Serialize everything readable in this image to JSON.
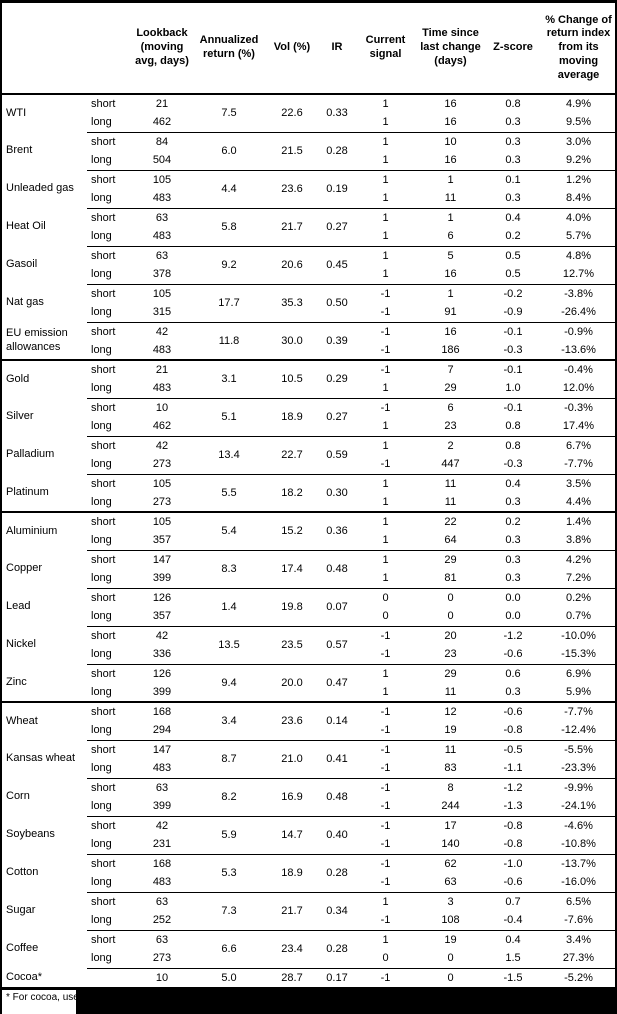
{
  "header": {
    "columns": [
      "",
      "",
      "Lookback (moving avg, days)",
      "Annualized return (%)",
      "Vol (%)",
      "IR",
      "Current signal",
      "Time since last change (days)",
      "Z-score",
      "% Change of return index from its moving average"
    ]
  },
  "commodities": [
    {
      "name": "WTI",
      "thick_top": false,
      "annualized": "7.5",
      "vol": "22.6",
      "ir": "0.33",
      "rows": [
        {
          "period": "short",
          "lookback": "21",
          "signal": "1",
          "time": "16",
          "zscore": "0.8",
          "pct_change": "4.9%"
        },
        {
          "period": "long",
          "lookback": "462",
          "signal": "1",
          "time": "16",
          "zscore": "0.3",
          "pct_change": "9.5%"
        }
      ]
    },
    {
      "name": "Brent",
      "thick_top": false,
      "annualized": "6.0",
      "vol": "21.5",
      "ir": "0.28",
      "rows": [
        {
          "period": "short",
          "lookback": "84",
          "signal": "1",
          "time": "10",
          "zscore": "0.3",
          "pct_change": "3.0%"
        },
        {
          "period": "long",
          "lookback": "504",
          "signal": "1",
          "time": "16",
          "zscore": "0.3",
          "pct_change": "9.2%"
        }
      ]
    },
    {
      "name": "Unleaded gas",
      "thick_top": false,
      "annualized": "4.4",
      "vol": "23.6",
      "ir": "0.19",
      "rows": [
        {
          "period": "short",
          "lookback": "105",
          "signal": "1",
          "time": "1",
          "zscore": "0.1",
          "pct_change": "1.2%"
        },
        {
          "period": "long",
          "lookback": "483",
          "signal": "1",
          "time": "11",
          "zscore": "0.3",
          "pct_change": "8.4%"
        }
      ]
    },
    {
      "name": "Heat Oil",
      "thick_top": false,
      "annualized": "5.8",
      "vol": "21.7",
      "ir": "0.27",
      "rows": [
        {
          "period": "short",
          "lookback": "63",
          "signal": "1",
          "time": "1",
          "zscore": "0.4",
          "pct_change": "4.0%"
        },
        {
          "period": "long",
          "lookback": "483",
          "signal": "1",
          "time": "6",
          "zscore": "0.2",
          "pct_change": "5.7%"
        }
      ]
    },
    {
      "name": "Gasoil",
      "thick_top": false,
      "annualized": "9.2",
      "vol": "20.6",
      "ir": "0.45",
      "rows": [
        {
          "period": "short",
          "lookback": "63",
          "signal": "1",
          "time": "5",
          "zscore": "0.5",
          "pct_change": "4.8%"
        },
        {
          "period": "long",
          "lookback": "378",
          "signal": "1",
          "time": "16",
          "zscore": "0.5",
          "pct_change": "12.7%"
        }
      ]
    },
    {
      "name": "Nat gas",
      "thick_top": false,
      "annualized": "17.7",
      "vol": "35.3",
      "ir": "0.50",
      "rows": [
        {
          "period": "short",
          "lookback": "105",
          "signal": "-1",
          "time": "1",
          "zscore": "-0.2",
          "pct_change": "-3.8%"
        },
        {
          "period": "long",
          "lookback": "315",
          "signal": "-1",
          "time": "91",
          "zscore": "-0.9",
          "pct_change": "-26.4%"
        }
      ]
    },
    {
      "name": "EU emission allowances",
      "thick_top": false,
      "annualized": "11.8",
      "vol": "30.0",
      "ir": "0.39",
      "rows": [
        {
          "period": "short",
          "lookback": "42",
          "signal": "-1",
          "time": "16",
          "zscore": "-0.1",
          "pct_change": "-0.9%"
        },
        {
          "period": "long",
          "lookback": "483",
          "signal": "-1",
          "time": "186",
          "zscore": "-0.3",
          "pct_change": "-13.6%"
        }
      ]
    },
    {
      "name": "Gold",
      "thick_top": true,
      "annualized": "3.1",
      "vol": "10.5",
      "ir": "0.29",
      "rows": [
        {
          "period": "short",
          "lookback": "21",
          "signal": "-1",
          "time": "7",
          "zscore": "-0.1",
          "pct_change": "-0.4%"
        },
        {
          "period": "long",
          "lookback": "483",
          "signal": "1",
          "time": "29",
          "zscore": "1.0",
          "pct_change": "12.0%"
        }
      ]
    },
    {
      "name": "Silver",
      "thick_top": false,
      "annualized": "5.1",
      "vol": "18.9",
      "ir": "0.27",
      "rows": [
        {
          "period": "short",
          "lookback": "10",
          "signal": "-1",
          "time": "6",
          "zscore": "-0.1",
          "pct_change": "-0.3%"
        },
        {
          "period": "long",
          "lookback": "462",
          "signal": "1",
          "time": "23",
          "zscore": "0.8",
          "pct_change": "17.4%"
        }
      ]
    },
    {
      "name": "Palladium",
      "thick_top": false,
      "annualized": "13.4",
      "vol": "22.7",
      "ir": "0.59",
      "rows": [
        {
          "period": "short",
          "lookback": "42",
          "signal": "1",
          "time": "2",
          "zscore": "0.8",
          "pct_change": "6.7%"
        },
        {
          "period": "long",
          "lookback": "273",
          "signal": "-1",
          "time": "447",
          "zscore": "-0.3",
          "pct_change": "-7.7%"
        }
      ]
    },
    {
      "name": "Platinum",
      "thick_top": false,
      "annualized": "5.5",
      "vol": "18.2",
      "ir": "0.30",
      "rows": [
        {
          "period": "short",
          "lookback": "105",
          "signal": "1",
          "time": "11",
          "zscore": "0.4",
          "pct_change": "3.5%"
        },
        {
          "period": "long",
          "lookback": "273",
          "signal": "1",
          "time": "11",
          "zscore": "0.3",
          "pct_change": "4.4%"
        }
      ]
    },
    {
      "name": "Aluminium",
      "thick_top": true,
      "annualized": "5.4",
      "vol": "15.2",
      "ir": "0.36",
      "rows": [
        {
          "period": "short",
          "lookback": "105",
          "signal": "1",
          "time": "22",
          "zscore": "0.2",
          "pct_change": "1.4%"
        },
        {
          "period": "long",
          "lookback": "357",
          "signal": "1",
          "time": "64",
          "zscore": "0.3",
          "pct_change": "3.8%"
        }
      ]
    },
    {
      "name": "Copper",
      "thick_top": false,
      "annualized": "8.3",
      "vol": "17.4",
      "ir": "0.48",
      "rows": [
        {
          "period": "short",
          "lookback": "147",
          "signal": "1",
          "time": "29",
          "zscore": "0.3",
          "pct_change": "4.2%"
        },
        {
          "period": "long",
          "lookback": "399",
          "signal": "1",
          "time": "81",
          "zscore": "0.3",
          "pct_change": "7.2%"
        }
      ]
    },
    {
      "name": "Lead",
      "thick_top": false,
      "annualized": "1.4",
      "vol": "19.8",
      "ir": "0.07",
      "rows": [
        {
          "period": "short",
          "lookback": "126",
          "signal": "0",
          "time": "0",
          "zscore": "0.0",
          "pct_change": "0.2%"
        },
        {
          "period": "long",
          "lookback": "357",
          "signal": "0",
          "time": "0",
          "zscore": "0.0",
          "pct_change": "0.7%"
        }
      ]
    },
    {
      "name": "Nickel",
      "thick_top": false,
      "annualized": "13.5",
      "vol": "23.5",
      "ir": "0.57",
      "rows": [
        {
          "period": "short",
          "lookback": "42",
          "signal": "-1",
          "time": "20",
          "zscore": "-1.2",
          "pct_change": "-10.0%"
        },
        {
          "period": "long",
          "lookback": "336",
          "signal": "-1",
          "time": "23",
          "zscore": "-0.6",
          "pct_change": "-15.3%"
        }
      ]
    },
    {
      "name": "Zinc",
      "thick_top": false,
      "annualized": "9.4",
      "vol": "20.0",
      "ir": "0.47",
      "rows": [
        {
          "period": "short",
          "lookback": "126",
          "signal": "1",
          "time": "29",
          "zscore": "0.6",
          "pct_change": "6.9%"
        },
        {
          "period": "long",
          "lookback": "399",
          "signal": "1",
          "time": "11",
          "zscore": "0.3",
          "pct_change": "5.9%"
        }
      ]
    },
    {
      "name": "Wheat",
      "thick_top": true,
      "annualized": "3.4",
      "vol": "23.6",
      "ir": "0.14",
      "rows": [
        {
          "period": "short",
          "lookback": "168",
          "signal": "-1",
          "time": "12",
          "zscore": "-0.6",
          "pct_change": "-7.7%"
        },
        {
          "period": "long",
          "lookback": "294",
          "signal": "-1",
          "time": "19",
          "zscore": "-0.8",
          "pct_change": "-12.4%"
        }
      ]
    },
    {
      "name": "Kansas wheat",
      "thick_top": false,
      "annualized": "8.7",
      "vol": "21.0",
      "ir": "0.41",
      "rows": [
        {
          "period": "short",
          "lookback": "147",
          "signal": "-1",
          "time": "11",
          "zscore": "-0.5",
          "pct_change": "-5.5%"
        },
        {
          "period": "long",
          "lookback": "483",
          "signal": "-1",
          "time": "83",
          "zscore": "-1.1",
          "pct_change": "-23.3%"
        }
      ]
    },
    {
      "name": "Corn",
      "thick_top": false,
      "annualized": "8.2",
      "vol": "16.9",
      "ir": "0.48",
      "rows": [
        {
          "period": "short",
          "lookback": "63",
          "signal": "-1",
          "time": "8",
          "zscore": "-1.2",
          "pct_change": "-9.9%"
        },
        {
          "period": "long",
          "lookback": "399",
          "signal": "-1",
          "time": "244",
          "zscore": "-1.3",
          "pct_change": "-24.1%"
        }
      ]
    },
    {
      "name": "Soybeans",
      "thick_top": false,
      "annualized": "5.9",
      "vol": "14.7",
      "ir": "0.40",
      "rows": [
        {
          "period": "short",
          "lookback": "42",
          "signal": "-1",
          "time": "17",
          "zscore": "-0.8",
          "pct_change": "-4.6%"
        },
        {
          "period": "long",
          "lookback": "231",
          "signal": "-1",
          "time": "140",
          "zscore": "-0.8",
          "pct_change": "-10.8%"
        }
      ]
    },
    {
      "name": "Cotton",
      "thick_top": false,
      "annualized": "5.3",
      "vol": "18.9",
      "ir": "0.28",
      "rows": [
        {
          "period": "short",
          "lookback": "168",
          "signal": "-1",
          "time": "62",
          "zscore": "-1.0",
          "pct_change": "-13.7%"
        },
        {
          "period": "long",
          "lookback": "483",
          "signal": "-1",
          "time": "63",
          "zscore": "-0.6",
          "pct_change": "-16.0%"
        }
      ]
    },
    {
      "name": "Sugar",
      "thick_top": false,
      "annualized": "7.3",
      "vol": "21.7",
      "ir": "0.34",
      "rows": [
        {
          "period": "short",
          "lookback": "63",
          "signal": "1",
          "time": "3",
          "zscore": "0.7",
          "pct_change": "6.5%"
        },
        {
          "period": "long",
          "lookback": "252",
          "signal": "-1",
          "time": "108",
          "zscore": "-0.4",
          "pct_change": "-7.6%"
        }
      ]
    },
    {
      "name": "Coffee",
      "thick_top": false,
      "annualized": "6.6",
      "vol": "23.4",
      "ir": "0.28",
      "rows": [
        {
          "period": "short",
          "lookback": "63",
          "signal": "1",
          "time": "19",
          "zscore": "0.4",
          "pct_change": "3.4%"
        },
        {
          "period": "long",
          "lookback": "273",
          "signal": "0",
          "time": "0",
          "zscore": "1.5",
          "pct_change": "27.3%"
        }
      ]
    },
    {
      "name": "Cocoa*",
      "thick_top": false,
      "annualized": "5.0",
      "vol": "28.7",
      "ir": "0.17",
      "rows": [
        {
          "period": "",
          "lookback": "10",
          "signal": "-1",
          "time": "0",
          "zscore": "-1.5",
          "pct_change": "-5.2%"
        }
      ]
    }
  ],
  "footnote": "* For cocoa, uses c"
}
